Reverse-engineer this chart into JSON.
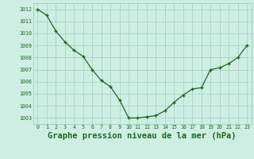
{
  "hours": [
    0,
    1,
    2,
    3,
    4,
    5,
    6,
    7,
    8,
    9,
    10,
    11,
    12,
    13,
    14,
    15,
    16,
    17,
    18,
    19,
    20,
    21,
    22,
    23
  ],
  "pressure": [
    1012.0,
    1011.5,
    1010.2,
    1009.3,
    1008.6,
    1008.1,
    1007.0,
    1006.1,
    1005.6,
    1004.5,
    1003.0,
    1003.0,
    1003.1,
    1003.2,
    1003.6,
    1004.3,
    1004.9,
    1005.4,
    1005.5,
    1007.0,
    1007.15,
    1007.5,
    1008.0,
    1009.0
  ],
  "ylim": [
    1002.5,
    1012.5
  ],
  "yticks": [
    1003,
    1004,
    1005,
    1006,
    1007,
    1008,
    1009,
    1010,
    1011,
    1012
  ],
  "xticks": [
    0,
    1,
    2,
    3,
    4,
    5,
    6,
    7,
    8,
    9,
    10,
    11,
    12,
    13,
    14,
    15,
    16,
    17,
    18,
    19,
    20,
    21,
    22,
    23
  ],
  "line_color": "#1a6b1a",
  "marker_color": "#1a6b1a",
  "bg_color": "#ceeee4",
  "grid_color": "#9ecebe",
  "xlabel": "Graphe pression niveau de la mer (hPa)",
  "xlabel_fontsize": 7.5
}
